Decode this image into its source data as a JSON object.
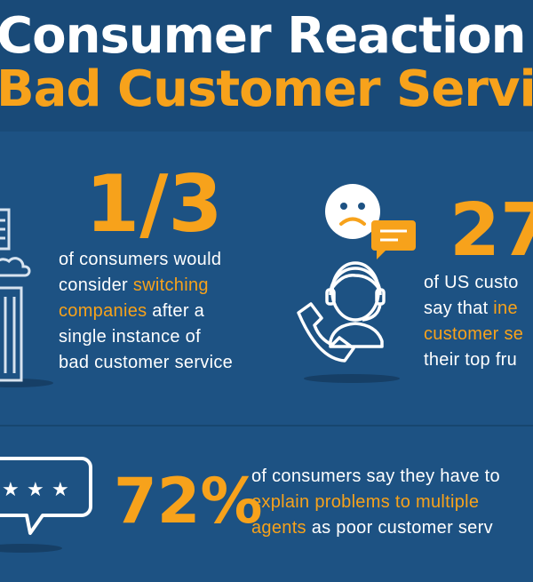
{
  "header": {
    "title_line1": "Consumer Reaction t",
    "title_line2": "Bad Customer Servic"
  },
  "stat1": {
    "value": "1/3",
    "line1": "of consumers would",
    "line2_pre": "consider ",
    "line2_hl": "switching",
    "line3_hl": "companies",
    "line3_post": " after a",
    "line4": "single instance of",
    "line5": "bad customer service",
    "icon": "office-building-icon"
  },
  "stat2": {
    "value": "27",
    "line1": "of US custo",
    "line2_pre": "say that ",
    "line2_hl": "ine",
    "line3_hl": "customer se",
    "line4": "their top fru",
    "icons": [
      "sad-face-icon",
      "chat-bubble-icon",
      "support-agent-headset-icon"
    ]
  },
  "stat3": {
    "value": "72%",
    "line1": "of consumers say they have to",
    "line2_hl": "explain problems to multiple",
    "line3_hl": "agents",
    "line3_post": " as poor customer serv",
    "icon": "review-stars-bubble-icon"
  },
  "colors": {
    "background": "#1d5283",
    "header_bg": "#194a78",
    "accent": "#f7a21b",
    "text": "#ffffff"
  }
}
